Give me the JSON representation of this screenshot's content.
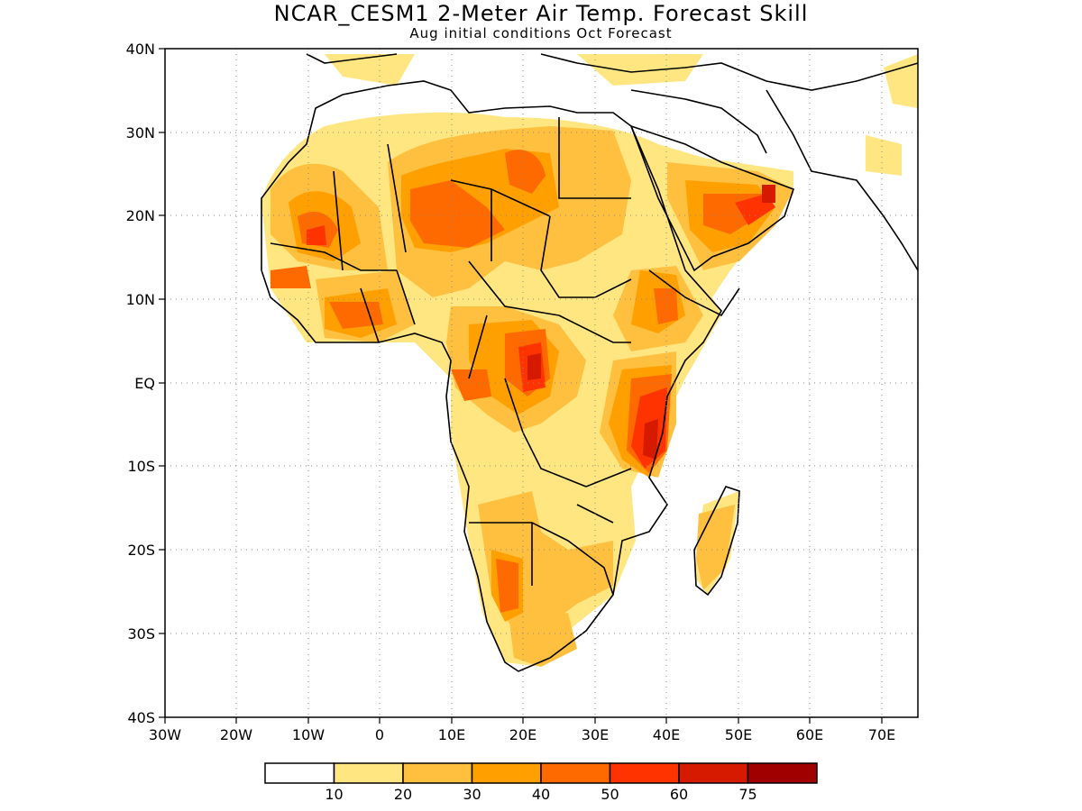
{
  "title": "NCAR_CESM1 2-Meter Air Temp. Forecast Skill",
  "subtitle": "Aug initial conditions  Oct Forecast",
  "map": {
    "lon_range": [
      -30,
      75
    ],
    "lat_range": [
      -40,
      40
    ],
    "lat_labels": [
      "40N",
      "30N",
      "20N",
      "10N",
      "EQ",
      "10S",
      "20S",
      "30S",
      "40S"
    ],
    "lon_labels": [
      "30W",
      "20W",
      "10W",
      "0",
      "10E",
      "20E",
      "30E",
      "40E",
      "50E",
      "60E",
      "70E"
    ],
    "gridlines": "dotted",
    "coastline_color": "#000000"
  },
  "legend": {
    "labels": [
      "10",
      "20",
      "30",
      "40",
      "50",
      "60",
      "75"
    ],
    "colors": [
      "#ffffff",
      "#ffe680",
      "#ffbf3f",
      "#ff9f00",
      "#ff6a00",
      "#ff3300",
      "#d61a00",
      "#a00000"
    ]
  }
}
